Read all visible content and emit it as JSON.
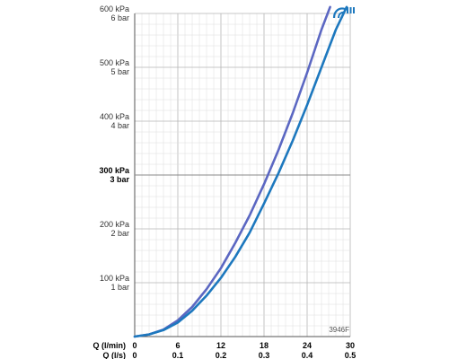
{
  "chart_data": {
    "type": "line",
    "code_label": "3946F",
    "x_axis": {
      "primary_label": "Q (l/min)",
      "secondary_label": "Q (l/s)",
      "lim": [
        0,
        30
      ],
      "ticks": [
        0,
        6,
        12,
        18,
        24,
        30
      ],
      "tick_labels": [
        "0",
        "6",
        "12",
        "18",
        "24",
        "30"
      ],
      "secondary_tick_labels": [
        "0",
        "0.1",
        "0.2",
        "0.3",
        "0.4",
        "0.5"
      ]
    },
    "y_axis": {
      "lim": [
        0,
        600
      ],
      "ticks": [
        100,
        200,
        300,
        400,
        500,
        600
      ],
      "tick_labels_kpa": [
        "100 kPa",
        "200 kPa",
        "300 kPa",
        "400 kPa",
        "500 kPa",
        "600 kPa"
      ],
      "tick_labels_bar": [
        "1 bar",
        "2 bar",
        "3 bar",
        "4 bar",
        "5 bar",
        "6 bar"
      ],
      "bold_tick": 300
    },
    "grid": true,
    "series": [
      {
        "color": "#5b67c2",
        "x": [
          0,
          2,
          4,
          6,
          8,
          10,
          12,
          14,
          16,
          18,
          20,
          22,
          24,
          26,
          27.2
        ],
        "y": [
          0,
          4,
          13,
          30,
          55,
          88,
          127,
          174,
          225,
          283,
          346,
          415,
          490,
          570,
          612
        ]
      },
      {
        "color": "#1d78be",
        "x": [
          0,
          2,
          4,
          6,
          8,
          10,
          12,
          14,
          16,
          18,
          20,
          22,
          24,
          26,
          28,
          29.5
        ],
        "y": [
          0,
          4,
          12,
          26,
          48,
          76,
          109,
          148,
          193,
          247,
          303,
          364,
          430,
          500,
          570,
          612
        ]
      }
    ],
    "legend_icon": "shower-icon",
    "legend_icon_color": "#1d78be"
  }
}
